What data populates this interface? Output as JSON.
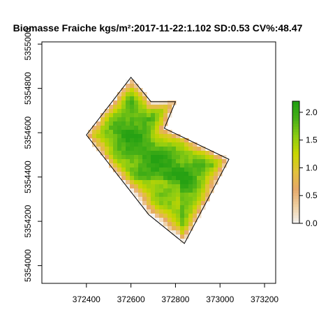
{
  "chart_data": {
    "type": "heatmap",
    "title": "Biomasse Fraiche kgs/m²:2017-11-22:1.102 SD:0.53 CV%:48.47",
    "xlabel": "",
    "ylabel": "",
    "xlim": [
      372200,
      373250
    ],
    "ylim": [
      5353920,
      5355010
    ],
    "xticks": [
      372400,
      372600,
      372800,
      373000,
      373200
    ],
    "xtick_labels": [
      "372400",
      "372600",
      "372800",
      "373000",
      "373200"
    ],
    "yticks": [
      5354000,
      5354200,
      5354400,
      5354600,
      5354800,
      5355000
    ],
    "ytick_labels": [
      "5354000",
      "5354200",
      "5354400",
      "5354600",
      "5354800",
      "5355000"
    ],
    "field_boundary": [
      [
        372600,
        5354850
      ],
      [
        372690,
        5354740
      ],
      [
        372800,
        5354740
      ],
      [
        372750,
        5354620
      ],
      [
        373040,
        5354480
      ],
      [
        372840,
        5354100
      ],
      [
        372680,
        5354230
      ],
      [
        372400,
        5354590
      ]
    ],
    "colorbar": {
      "min": 0.0,
      "max": 2.2,
      "ticks": [
        0.0,
        0.5,
        1.0,
        1.5,
        2.0
      ],
      "tick_labels": [
        "0.0",
        "0.5",
        "1.0",
        "1.5",
        "2.0"
      ],
      "palette": [
        "#f2f2f2",
        "#eecfa1",
        "#e6a868",
        "#e2c23a",
        "#c8d600",
        "#8dcc12",
        "#48b017",
        "#1f9e12"
      ]
    },
    "grid": false,
    "legend_placement": "right"
  }
}
